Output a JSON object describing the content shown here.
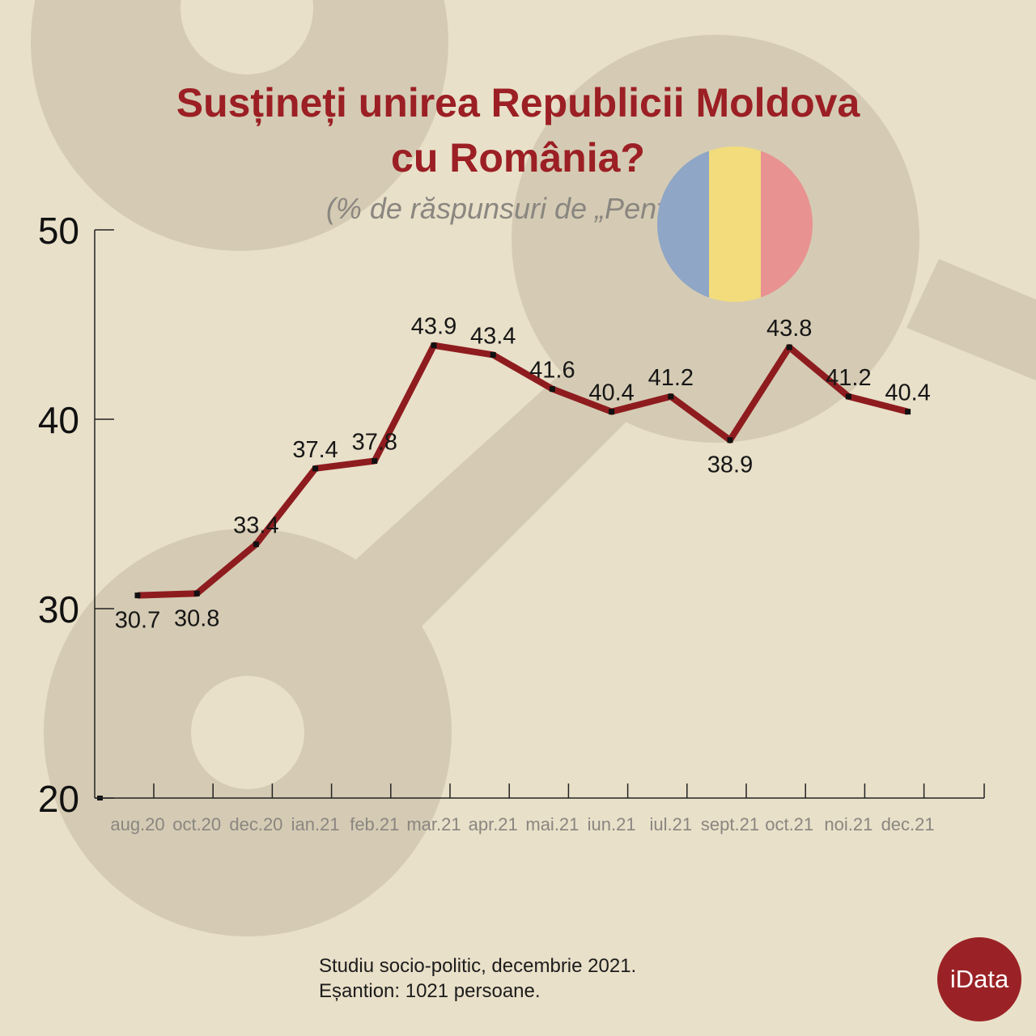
{
  "title_line1": "Susțineți unirea Republicii Moldova",
  "title_line2": "cu România?",
  "subtitle": "(% de răspunsuri de „Pentru”)",
  "footnote": {
    "line1": "Studiu socio-politic, decembrie 2021.",
    "line2": "Eșantion: 1021 persoane."
  },
  "logo_text": "iData",
  "flag_colors": [
    "#8fa6c6",
    "#f2dc7c",
    "#e89292"
  ],
  "colors": {
    "line": "#8e1c1f",
    "title": "#9b1f24",
    "background": "#e9e0c9",
    "shapes": "#d5cbb4",
    "logo": "#9a2226"
  },
  "chart_data": {
    "type": "line",
    "title": "Susțineți unirea Republicii Moldova cu România?",
    "subtitle": "(% de răspunsuri de „Pentru”)",
    "categories": [
      "aug.20",
      "oct.20",
      "dec.20",
      "ian.21",
      "feb.21",
      "mar.21",
      "apr.21",
      "mai.21",
      "iun.21",
      "iul.21",
      "sept.21",
      "oct.21",
      "noi.21",
      "dec.21"
    ],
    "series": [
      {
        "name": "Pentru",
        "values": [
          30.7,
          30.8,
          33.4,
          37.4,
          37.8,
          43.9,
          43.4,
          41.6,
          40.4,
          41.2,
          38.9,
          43.8,
          41.2,
          40.4
        ]
      }
    ],
    "ylim": [
      20,
      50
    ],
    "yticks": [
      20,
      30,
      40,
      50
    ],
    "xlabel": "",
    "ylabel": ""
  }
}
